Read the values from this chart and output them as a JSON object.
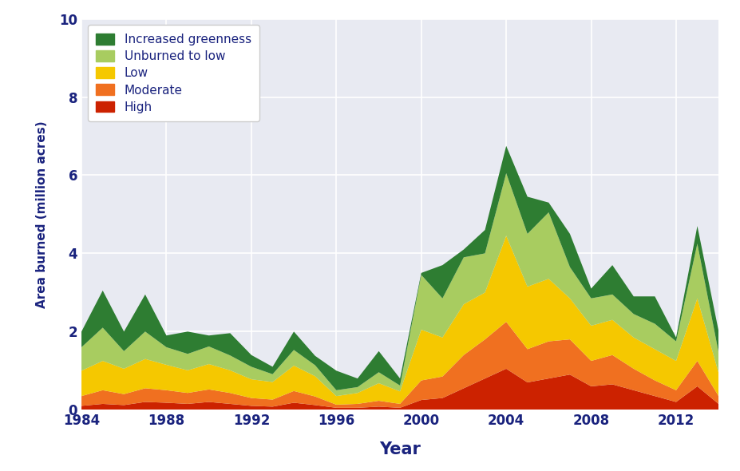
{
  "years": [
    1984,
    1985,
    1986,
    1987,
    1988,
    1989,
    1990,
    1991,
    1992,
    1993,
    1994,
    1995,
    1996,
    1997,
    1998,
    1999,
    2000,
    2001,
    2002,
    2003,
    2004,
    2005,
    2006,
    2007,
    2008,
    2009,
    2010,
    2011,
    2012,
    2013,
    2014
  ],
  "high": [
    0.1,
    0.15,
    0.12,
    0.2,
    0.18,
    0.15,
    0.2,
    0.15,
    0.1,
    0.08,
    0.18,
    0.12,
    0.05,
    0.05,
    0.08,
    0.05,
    0.25,
    0.3,
    0.55,
    0.8,
    1.05,
    0.7,
    0.8,
    0.9,
    0.6,
    0.65,
    0.5,
    0.35,
    0.2,
    0.6,
    0.15
  ],
  "moderate": [
    0.25,
    0.35,
    0.28,
    0.35,
    0.32,
    0.28,
    0.32,
    0.28,
    0.2,
    0.18,
    0.3,
    0.22,
    0.08,
    0.1,
    0.15,
    0.1,
    0.5,
    0.55,
    0.85,
    1.0,
    1.2,
    0.85,
    0.95,
    0.9,
    0.65,
    0.75,
    0.55,
    0.4,
    0.3,
    0.65,
    0.2
  ],
  "low": [
    0.65,
    0.75,
    0.65,
    0.75,
    0.65,
    0.58,
    0.65,
    0.58,
    0.48,
    0.45,
    0.65,
    0.52,
    0.22,
    0.28,
    0.45,
    0.32,
    1.3,
    1.0,
    1.3,
    1.2,
    2.2,
    1.6,
    1.6,
    1.05,
    0.9,
    0.9,
    0.8,
    0.8,
    0.75,
    1.6,
    0.6
  ],
  "unburned_to_low": [
    0.6,
    0.85,
    0.45,
    0.7,
    0.45,
    0.42,
    0.45,
    0.38,
    0.32,
    0.2,
    0.4,
    0.28,
    0.15,
    0.15,
    0.28,
    0.15,
    1.4,
    1.0,
    1.2,
    1.0,
    1.6,
    1.35,
    1.7,
    0.8,
    0.7,
    0.65,
    0.6,
    0.65,
    0.5,
    1.4,
    0.52
  ],
  "increased_greenness": [
    0.4,
    0.95,
    0.5,
    0.95,
    0.3,
    0.57,
    0.28,
    0.57,
    0.3,
    0.19,
    0.47,
    0.24,
    0.5,
    0.22,
    0.54,
    0.18,
    0.05,
    0.85,
    0.2,
    0.6,
    0.7,
    0.95,
    0.25,
    0.85,
    0.25,
    0.75,
    0.45,
    0.7,
    0.1,
    0.45,
    0.55
  ],
  "colors": {
    "high": "#cc2200",
    "moderate": "#f07020",
    "low": "#f5c800",
    "unburned_to_low": "#a8cc60",
    "increased_greenness": "#2e7d32"
  },
  "background_color": "#e8eaf2",
  "fig_background": "#ffffff",
  "xlabel": "Year",
  "ylabel": "Area burned (million acres)",
  "ylim": [
    0,
    10
  ],
  "yticks": [
    0,
    2,
    4,
    6,
    8,
    10
  ],
  "xticks": [
    1984,
    1988,
    1992,
    1996,
    2000,
    2004,
    2008,
    2012
  ],
  "legend_labels": [
    "Increased greenness",
    "Unburned to low",
    "Low",
    "Moderate",
    "High"
  ],
  "axis_label_color": "#1a237e",
  "tick_color": "#1a237e"
}
